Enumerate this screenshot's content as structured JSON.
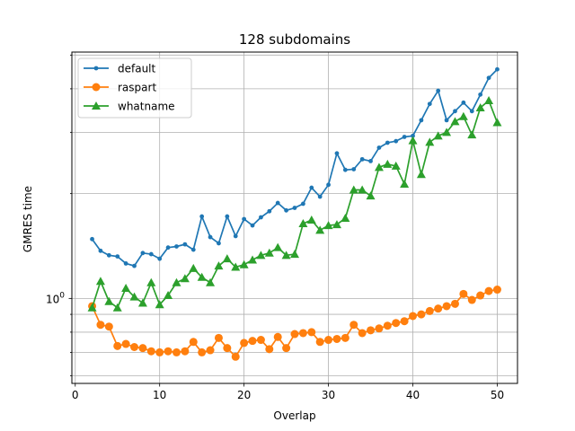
{
  "chart_data": {
    "type": "line",
    "title": "128 subdomains",
    "xlabel": "Overlap",
    "ylabel": "GMRES time",
    "y_scale": "log",
    "xlim": [
      -0.4,
      52.4
    ],
    "ylim": [
      0.57,
      5.1
    ],
    "xticks": [
      0,
      10,
      20,
      30,
      40,
      50
    ],
    "yticks_labeled": [
      {
        "value": 1,
        "label": "10^0"
      }
    ],
    "grid": true,
    "legend_position": "top-left",
    "x": [
      2,
      3,
      4,
      5,
      6,
      7,
      8,
      9,
      10,
      11,
      12,
      13,
      14,
      15,
      16,
      17,
      18,
      19,
      20,
      21,
      22,
      23,
      24,
      25,
      26,
      27,
      28,
      29,
      30,
      31,
      32,
      33,
      34,
      35,
      36,
      37,
      38,
      39,
      40,
      41,
      42,
      43,
      44,
      45,
      46,
      47,
      48,
      49,
      50
    ],
    "series": [
      {
        "name": "default",
        "color": "#1f77b4",
        "marker": "circle-small",
        "values": [
          1.48,
          1.37,
          1.33,
          1.32,
          1.26,
          1.24,
          1.35,
          1.34,
          1.3,
          1.4,
          1.41,
          1.43,
          1.38,
          1.72,
          1.5,
          1.44,
          1.72,
          1.51,
          1.69,
          1.62,
          1.71,
          1.78,
          1.88,
          1.79,
          1.82,
          1.87,
          2.08,
          1.96,
          2.12,
          2.61,
          2.34,
          2.35,
          2.51,
          2.48,
          2.71,
          2.8,
          2.83,
          2.91,
          2.93,
          3.25,
          3.62,
          3.95,
          3.25,
          3.45,
          3.65,
          3.45,
          3.85,
          4.3,
          4.55
        ]
      },
      {
        "name": "raspart",
        "color": "#ff7f0e",
        "marker": "circle",
        "values": [
          0.95,
          0.84,
          0.83,
          0.73,
          0.74,
          0.725,
          0.72,
          0.705,
          0.7,
          0.705,
          0.7,
          0.705,
          0.75,
          0.7,
          0.71,
          0.77,
          0.72,
          0.68,
          0.745,
          0.755,
          0.76,
          0.715,
          0.775,
          0.72,
          0.79,
          0.795,
          0.8,
          0.75,
          0.76,
          0.765,
          0.77,
          0.84,
          0.795,
          0.81,
          0.82,
          0.835,
          0.85,
          0.86,
          0.89,
          0.9,
          0.92,
          0.935,
          0.95,
          0.965,
          1.03,
          0.99,
          1.02,
          1.05,
          1.06
        ]
      },
      {
        "name": "whatname",
        "color": "#2ca02c",
        "marker": "triangle-up",
        "values": [
          0.94,
          1.12,
          0.98,
          0.94,
          1.07,
          1.01,
          0.97,
          1.11,
          0.96,
          1.02,
          1.11,
          1.14,
          1.22,
          1.15,
          1.11,
          1.24,
          1.3,
          1.23,
          1.25,
          1.29,
          1.33,
          1.35,
          1.4,
          1.33,
          1.34,
          1.64,
          1.68,
          1.57,
          1.62,
          1.63,
          1.7,
          2.05,
          2.05,
          1.97,
          2.38,
          2.43,
          2.4,
          2.13,
          2.84,
          2.27,
          2.81,
          2.93,
          3.0,
          3.22,
          3.33,
          2.95,
          3.53,
          3.7,
          3.2
        ]
      }
    ]
  }
}
